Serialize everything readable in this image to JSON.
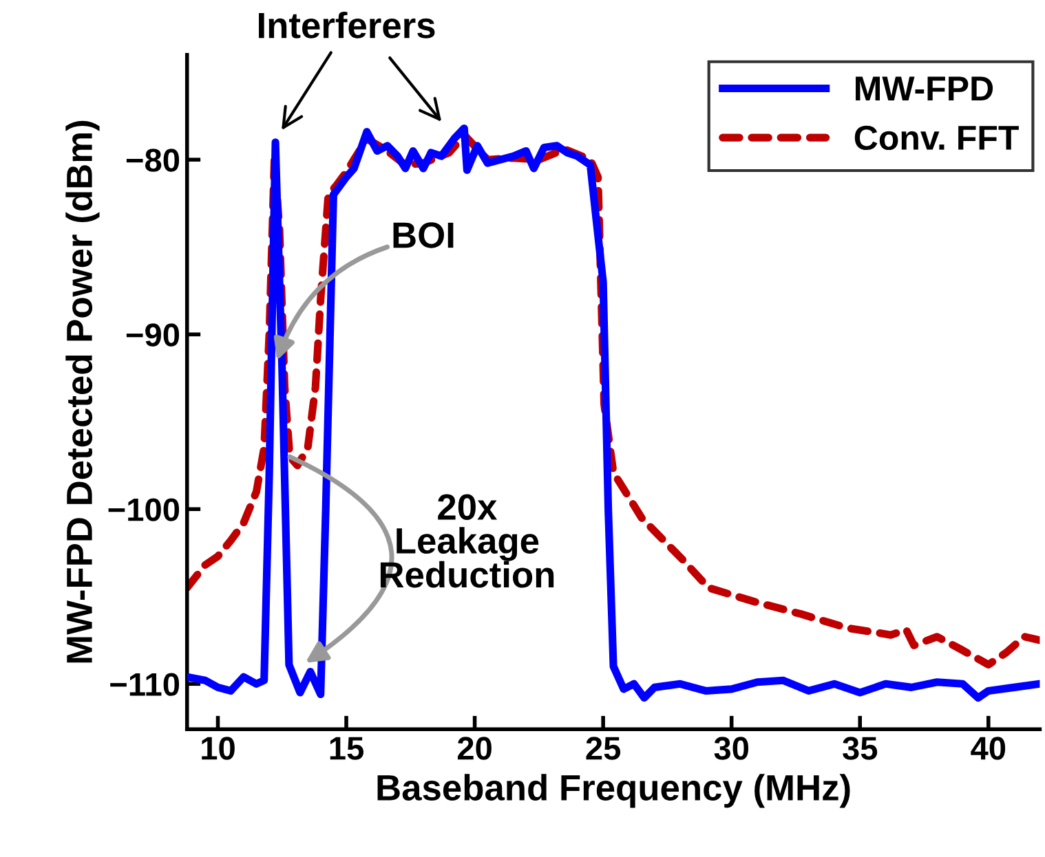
{
  "chart_data": {
    "type": "line",
    "xlabel": "Baseband Frequency (MHz)",
    "ylabel": "MW-FPD Detected Power (dBm)",
    "xlim": [
      8.8,
      42
    ],
    "xticks": [
      10,
      15,
      20,
      25,
      30,
      35,
      40
    ],
    "ylim": [
      -112.6,
      -74
    ],
    "yticks": [
      {
        "value": -110,
        "label": "−110"
      },
      {
        "value": -100,
        "label": "−100"
      },
      {
        "value": -90,
        "label": "−90"
      },
      {
        "value": -80,
        "label": "−80"
      }
    ],
    "legend": "top right",
    "grid": false,
    "series": [
      {
        "name": "MW-FPD",
        "color": "#0000ff",
        "line_style": "solid",
        "x": [
          8.8,
          9.5,
          10,
          10.5,
          11,
          11.5,
          11.8,
          12.0,
          12.24,
          12.5,
          12.77,
          13.2,
          13.6,
          14.0,
          14.2,
          14.5,
          15.0,
          15.3,
          15.8,
          16.2,
          16.6,
          17.0,
          17.3,
          17.6,
          18.0,
          18.3,
          18.7,
          19.2,
          19.59,
          19.7,
          20.1,
          20.5,
          21.0,
          21.5,
          22.0,
          22.3,
          22.7,
          23.2,
          23.6,
          24.0,
          24.5,
          24.7,
          25.0,
          25.2,
          25.4,
          25.8,
          26.2,
          26.6,
          27.0,
          28.0,
          29.0,
          30.0,
          31.0,
          32.0,
          33.0,
          34.0,
          35.0,
          36.0,
          37.0,
          38.0,
          39.0,
          39.6,
          40.0,
          41.0,
          42.0
        ],
        "values": [
          -109.6,
          -109.8,
          -110.2,
          -110.4,
          -109.6,
          -110,
          -109.8,
          -98,
          -79,
          -92,
          -108.9,
          -110.5,
          -109.3,
          -110.6,
          -100,
          -82,
          -81,
          -80.5,
          -78.4,
          -79.5,
          -79.2,
          -79.8,
          -80.5,
          -79.5,
          -80.5,
          -79.6,
          -79.8,
          -78.8,
          -78.2,
          -80.6,
          -79.2,
          -80.2,
          -80,
          -79.8,
          -79.5,
          -80.5,
          -79.3,
          -79.2,
          -79.6,
          -79.8,
          -80.3,
          -83,
          -87,
          -100,
          -109,
          -110.3,
          -110,
          -110.8,
          -110.2,
          -110,
          -110.4,
          -110.3,
          -109.9,
          -109.8,
          -110.4,
          -110,
          -110.5,
          -110,
          -110.2,
          -109.9,
          -110,
          -110.8,
          -110.4,
          -110.2,
          -110
        ]
      },
      {
        "name": "Conv. FFT",
        "color": "#c00000",
        "line_style": "dashed",
        "x": [
          8.8,
          9.5,
          10,
          10.5,
          11,
          11.5,
          11.8,
          12.0,
          12.2,
          12.4,
          12.6,
          12.8,
          13.1,
          13.5,
          13.8,
          14.0,
          14.3,
          14.6,
          15.0,
          15.8,
          16.6,
          17.3,
          18.0,
          19.0,
          19.6,
          20.5,
          21.5,
          22.5,
          23.5,
          24.5,
          24.8,
          25.04,
          25.4,
          26.5,
          28.1,
          29.1,
          30.9,
          32.7,
          34.5,
          36.2,
          36.8,
          37.1,
          38.0,
          38.9,
          40.0,
          40.7,
          41.4,
          42.0
        ],
        "values": [
          -104.5,
          -103.2,
          -102.7,
          -101.8,
          -100.8,
          -99,
          -96.5,
          -90,
          -80,
          -84,
          -93,
          -97,
          -97.5,
          -96.5,
          -93,
          -88,
          -82,
          -81.5,
          -80.7,
          -78.8,
          -79.5,
          -80.3,
          -80.2,
          -79.6,
          -78.6,
          -80,
          -79.9,
          -80,
          -79.4,
          -80,
          -81,
          -94,
          -97.9,
          -100.5,
          -102.9,
          -104.5,
          -105.3,
          -106,
          -106.8,
          -107.2,
          -106.9,
          -107.8,
          -107.3,
          -108,
          -108.9,
          -108.2,
          -107.3,
          -107.5
        ]
      }
    ],
    "annotations": [
      "Interferers",
      {
        "text": "BOI",
        "x": 12.3,
        "y": -91.5
      },
      {
        "text": "20x\nLeakage\nReduction",
        "x": 13.4,
        "y": -108.8
      }
    ]
  }
}
